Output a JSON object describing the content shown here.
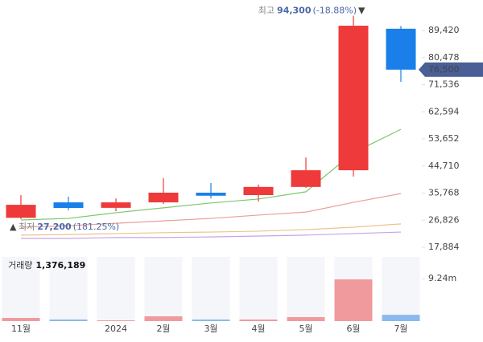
{
  "chart_data": {
    "type": "candlestick",
    "categories": [
      "11월",
      null,
      "2024",
      "2월",
      "3월",
      "4월",
      "5월",
      "6월",
      "7월"
    ],
    "ohlc": {
      "open": [
        27600,
        32700,
        30900,
        32700,
        35900,
        35100,
        37800,
        43300,
        90000
      ],
      "high": [
        35100,
        34600,
        34000,
        40700,
        39100,
        38600,
        47500,
        94300,
        90900
      ],
      "low": [
        27200,
        30100,
        29800,
        32200,
        34000,
        33000,
        37500,
        41200,
        72500
      ],
      "close": [
        31900,
        30850,
        32700,
        35900,
        34900,
        37800,
        43300,
        91000,
        76500
      ]
    },
    "up_color": "#ee3a3a",
    "down_color": "#1a7fe8",
    "moving_averages": [
      {
        "color": "#7cc86a",
        "values": [
          26900,
          27400,
          29300,
          30900,
          32500,
          33800,
          36200,
          49100,
          56800
        ]
      },
      {
        "color": "#e9a09a",
        "values": [
          24500,
          25000,
          25800,
          26600,
          27400,
          28500,
          29500,
          32700,
          35600
        ]
      },
      {
        "color": "#ecc48a",
        "values": [
          21900,
          22100,
          22400,
          22700,
          22900,
          23200,
          23700,
          24500,
          25600
        ]
      },
      {
        "color": "#c6a3e6",
        "values": [
          20800,
          20800,
          21100,
          21100,
          21300,
          21600,
          21900,
          22400,
          22900
        ]
      }
    ],
    "ylim": [
      17884,
      99490
    ],
    "yticks": [
      {
        "value": 17884,
        "label": "17,884"
      },
      {
        "value": 26826,
        "label": "26,826"
      },
      {
        "value": 35768,
        "label": "35,768"
      },
      {
        "value": 44710,
        "label": "44,710"
      },
      {
        "value": 53652,
        "label": "53,652"
      },
      {
        "value": 62594,
        "label": "62,594"
      },
      {
        "value": 71536,
        "label": "71,536"
      },
      {
        "value": 80478,
        "label": "80,478"
      },
      {
        "value": 89420,
        "label": "89,420"
      }
    ],
    "grid": false,
    "current_price": {
      "value": 76500,
      "label": "76,500"
    },
    "high_annotation": {
      "text": "최고",
      "value": 94300,
      "value_label": "94,300",
      "change": "(-18.88%)"
    },
    "low_annotation": {
      "text": "최저",
      "value": 27200,
      "value_label": "27,200",
      "change": "(181.25%)"
    },
    "volume": {
      "label": "거래량",
      "latest": 1376189,
      "latest_label": "1,376,189",
      "values": [
        700000,
        350000,
        170000,
        1050000,
        350000,
        350000,
        870000,
        9100000,
        1376189
      ],
      "up_color": "#f09a9d",
      "down_color": "#8ab8ef",
      "ylim": [
        0,
        14000000
      ],
      "yticks": [
        {
          "value": 9240000,
          "label": "9.24m"
        }
      ]
    }
  }
}
